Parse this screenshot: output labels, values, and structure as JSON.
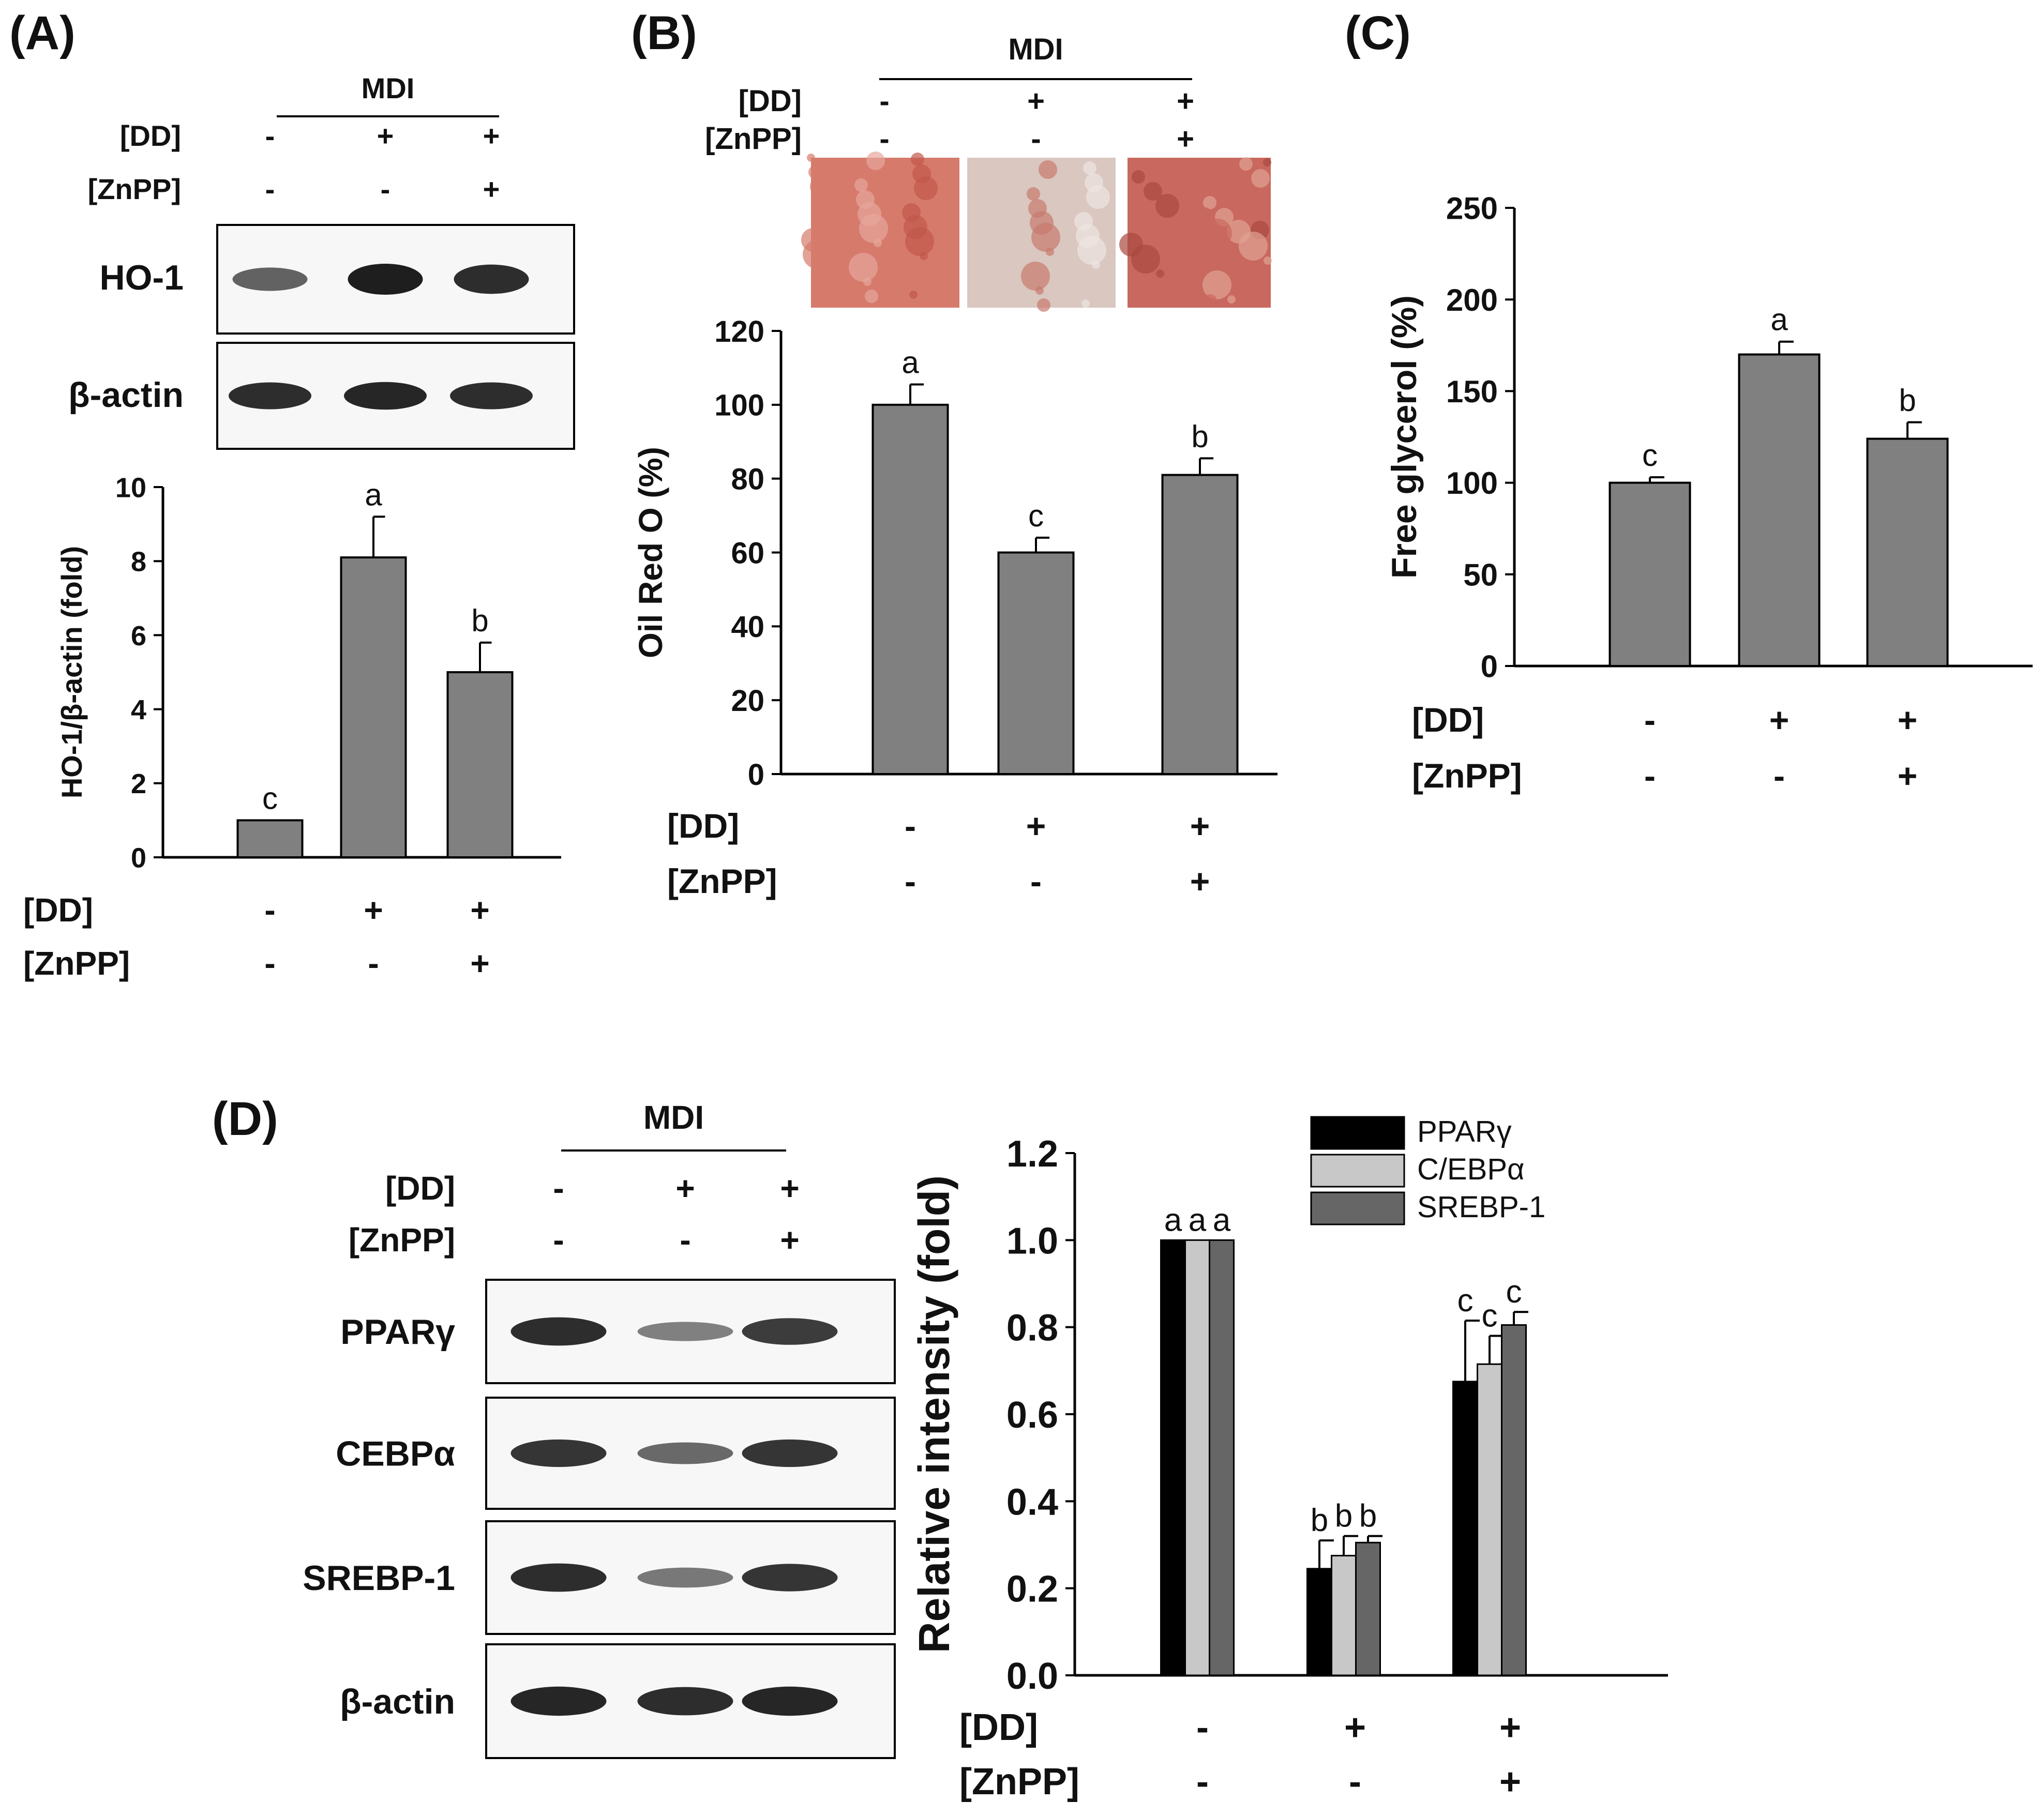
{
  "panels": {
    "A": {
      "label": "(A)",
      "treatment_header": "MDI",
      "rows": [
        {
          "name": "[DD]",
          "values": [
            "-",
            "+",
            "+"
          ]
        },
        {
          "name": "[ZnPP]",
          "values": [
            "-",
            "-",
            "+"
          ]
        }
      ],
      "blots": [
        {
          "label": "HO-1",
          "intensities": [
            0.55,
            1.0,
            0.9
          ]
        },
        {
          "label": "β-actin",
          "intensities": [
            0.9,
            0.95,
            0.9
          ]
        }
      ]
    },
    "B": {
      "label": "(B)",
      "treatment_header": "MDI",
      "rows": [
        {
          "name": "[DD]",
          "values": [
            "-",
            "+",
            "+"
          ]
        },
        {
          "name": "[ZnPP]",
          "values": [
            "-",
            "-",
            "+"
          ]
        }
      ],
      "stain_images": [
        "oil-red-o-control",
        "oil-red-o-dd",
        "oil-red-o-dd-znpp"
      ]
    },
    "C": {
      "label": "(C)"
    },
    "D": {
      "label": "(D)",
      "treatment_header": "MDI",
      "rows": [
        {
          "name": "[DD]",
          "values": [
            "-",
            "+",
            "+"
          ]
        },
        {
          "name": "[ZnPP]",
          "values": [
            "-",
            "-",
            "+"
          ]
        }
      ],
      "blots": [
        {
          "label": "PPARγ",
          "intensities": [
            0.9,
            0.35,
            0.8
          ]
        },
        {
          "label": "CEBPα",
          "intensities": [
            0.85,
            0.5,
            0.85
          ]
        },
        {
          "label": "SREBP-1",
          "intensities": [
            0.9,
            0.4,
            0.85
          ]
        },
        {
          "label": "β-actin",
          "intensities": [
            0.95,
            0.9,
            0.95
          ]
        }
      ]
    }
  },
  "chart_data": [
    {
      "panel": "A",
      "type": "bar",
      "ylabel": "HO-1/β-actin (fold)",
      "ylim": [
        0,
        10
      ],
      "yticks": [
        "0",
        "2",
        "4",
        "6",
        "8",
        "10"
      ],
      "row_labels": [
        "[DD]",
        "[ZnPP]"
      ],
      "rows": [
        [
          "-",
          "+",
          "+"
        ],
        [
          "-",
          "-",
          "+"
        ]
      ],
      "values": [
        1.0,
        8.1,
        5.0
      ],
      "errors": [
        0,
        1.1,
        0.8
      ],
      "letters": [
        "c",
        "a",
        "b"
      ],
      "bar_color": "#808080"
    },
    {
      "panel": "B",
      "type": "bar",
      "ylabel": "Oil Red O (%)",
      "ylim": [
        0,
        120
      ],
      "yticks": [
        "0",
        "20",
        "40",
        "60",
        "80",
        "100",
        "120"
      ],
      "row_labels": [
        "[DD]",
        "[ZnPP]"
      ],
      "rows": [
        [
          "-",
          "+",
          "+"
        ],
        [
          "-",
          "-",
          "+"
        ]
      ],
      "values": [
        100,
        60,
        81
      ],
      "errors": [
        5.5,
        4.0,
        4.5
      ],
      "letters": [
        "a",
        "c",
        "b"
      ],
      "bar_color": "#808080"
    },
    {
      "panel": "C",
      "type": "bar",
      "ylabel": "Free glycerol (%)",
      "ylim": [
        0,
        250
      ],
      "yticks": [
        "0",
        "50",
        "100",
        "150",
        "200",
        "250"
      ],
      "row_labels": [
        "[DD]",
        "[ZnPP]"
      ],
      "rows": [
        [
          "-",
          "+",
          "+"
        ],
        [
          "-",
          "-",
          "+"
        ]
      ],
      "values": [
        100,
        170,
        124
      ],
      "errors": [
        3,
        7,
        9
      ],
      "letters": [
        "c",
        "a",
        "b"
      ],
      "bar_color": "#808080"
    },
    {
      "panel": "D",
      "type": "bar",
      "ylabel": "Relative intensity (fold)",
      "ylim": [
        0,
        1.2
      ],
      "yticks": [
        "0.0",
        "0.2",
        "0.4",
        "0.6",
        "0.8",
        "1.0",
        "1.2"
      ],
      "row_labels": [
        "[DD]",
        "[ZnPP]"
      ],
      "rows": [
        [
          "-",
          "+",
          "+"
        ],
        [
          "-",
          "-",
          "+"
        ]
      ],
      "series": [
        {
          "name": "PPARγ",
          "color": "#000000",
          "values": [
            1.0,
            0.245,
            0.675
          ],
          "errors": [
            0,
            0.065,
            0.14
          ],
          "letters": [
            "a",
            "b",
            "c"
          ]
        },
        {
          "name": "C/EBPα",
          "color": "#c8c8c8",
          "values": [
            1.0,
            0.275,
            0.715
          ],
          "errors": [
            0,
            0.045,
            0.065
          ],
          "letters": [
            "a",
            "b",
            "c"
          ]
        },
        {
          "name": "SREBP-1",
          "color": "#666666",
          "values": [
            1.0,
            0.305,
            0.805
          ],
          "errors": [
            0,
            0.015,
            0.03
          ],
          "letters": [
            "a",
            "b",
            "c"
          ]
        }
      ],
      "legend_position": "top-right"
    }
  ]
}
